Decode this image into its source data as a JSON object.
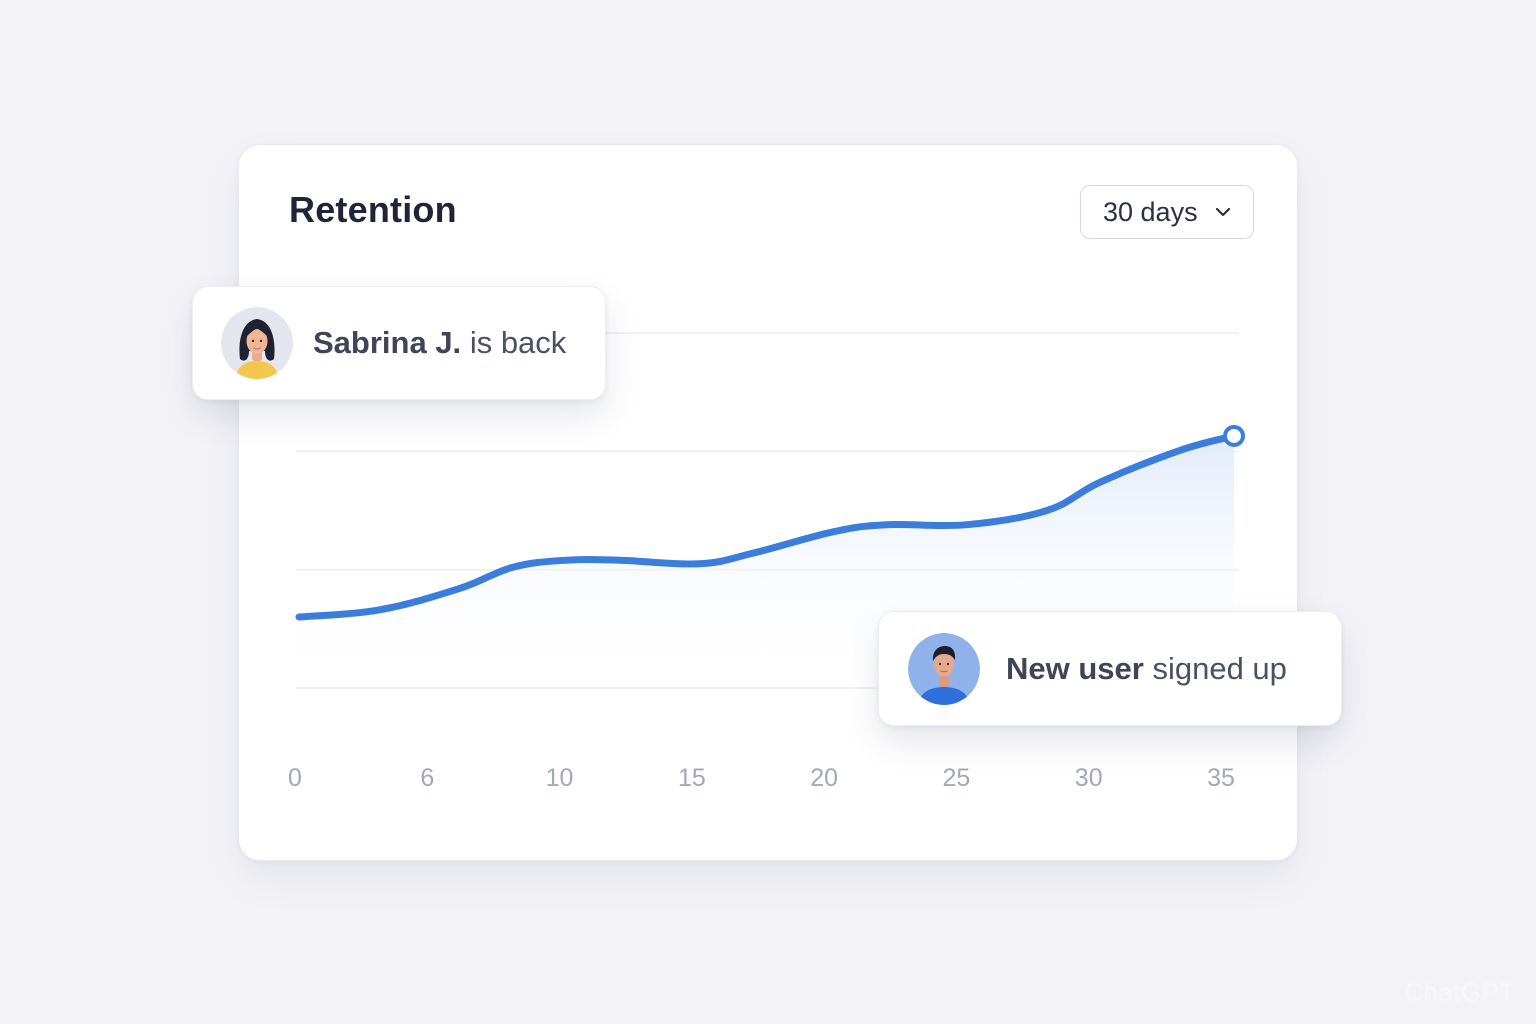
{
  "card": {
    "title": "Retention",
    "range_select": {
      "selected": "30 days",
      "icon": "chevron-down-icon"
    }
  },
  "chart_data": {
    "type": "area",
    "x": [
      0,
      3,
      6,
      8,
      10,
      12,
      15,
      17,
      20,
      22,
      25,
      28,
      30,
      33,
      35
    ],
    "values": [
      20,
      22,
      28,
      34,
      36,
      36,
      35,
      38,
      44,
      46,
      46,
      50,
      58,
      67,
      71
    ],
    "xticks": [
      "0",
      "6",
      "10",
      "15",
      "20",
      "25",
      "30",
      "35"
    ],
    "xlim": [
      0,
      35
    ],
    "ylim": [
      0,
      100
    ],
    "gridlines": 4,
    "line_color": "#3b7ddd",
    "fill_color": "#e7eefb",
    "end_marker": "hollow-circle"
  },
  "notifications": [
    {
      "name_strong": "Sabrina J.",
      "text": "is back",
      "avatar": "woman-avatar"
    },
    {
      "name_strong": "New user",
      "text": "signed up",
      "avatar": "man-avatar"
    }
  ],
  "watermark": "ChatGPT"
}
